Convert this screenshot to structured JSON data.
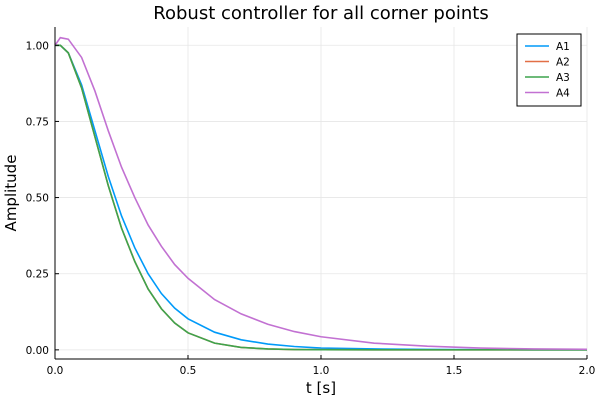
{
  "chart_data": {
    "type": "line",
    "title": "Robust controller for all corner points",
    "xlabel": "t [s]",
    "ylabel": "Amplitude",
    "xlim": [
      0,
      2.0
    ],
    "ylim": [
      -0.03,
      1.06
    ],
    "xticks": [
      0,
      0.5,
      1.0,
      1.5,
      2.0
    ],
    "xtick_labels": [
      "0.0",
      "0.5",
      "1.0",
      "1.5",
      "2.0"
    ],
    "yticks": [
      0,
      0.25,
      0.5,
      0.75,
      1.0
    ],
    "ytick_labels": [
      "0.00",
      "0.25",
      "0.50",
      "0.75",
      "1.00"
    ],
    "grid": true,
    "legend_position": "top-right",
    "x": [
      0,
      0.02,
      0.05,
      0.1,
      0.15,
      0.2,
      0.25,
      0.3,
      0.35,
      0.4,
      0.45,
      0.5,
      0.6,
      0.7,
      0.8,
      0.9,
      1.0,
      1.2,
      1.4,
      1.6,
      1.8,
      2.0
    ],
    "series": [
      {
        "name": "A1",
        "color": "#009af9",
        "values": [
          1.0,
          1.0,
          0.975,
          0.87,
          0.72,
          0.57,
          0.44,
          0.335,
          0.25,
          0.185,
          0.137,
          0.102,
          0.058,
          0.033,
          0.019,
          0.011,
          0.006,
          0.003,
          0.0015,
          0.0007,
          0.0003,
          0.0001
        ]
      },
      {
        "name": "A2",
        "color": "#e26f46",
        "values": [
          1.0,
          1.0,
          0.975,
          0.86,
          0.7,
          0.54,
          0.4,
          0.29,
          0.2,
          0.135,
          0.088,
          0.056,
          0.022,
          0.008,
          0.003,
          0.001,
          0.0005,
          0.0001,
          0.0,
          0.0,
          0.0,
          0.0
        ]
      },
      {
        "name": "A3",
        "color": "#3da44d",
        "values": [
          1.0,
          1.0,
          0.975,
          0.86,
          0.7,
          0.54,
          0.4,
          0.29,
          0.2,
          0.135,
          0.088,
          0.056,
          0.022,
          0.008,
          0.003,
          0.001,
          0.0005,
          0.0001,
          0.0,
          0.0,
          0.0,
          0.0
        ]
      },
      {
        "name": "A4",
        "color": "#c271d2",
        "values": [
          1.0,
          1.025,
          1.02,
          0.96,
          0.85,
          0.72,
          0.6,
          0.5,
          0.41,
          0.34,
          0.28,
          0.235,
          0.165,
          0.118,
          0.084,
          0.06,
          0.043,
          0.022,
          0.012,
          0.006,
          0.003,
          0.002
        ]
      }
    ]
  }
}
